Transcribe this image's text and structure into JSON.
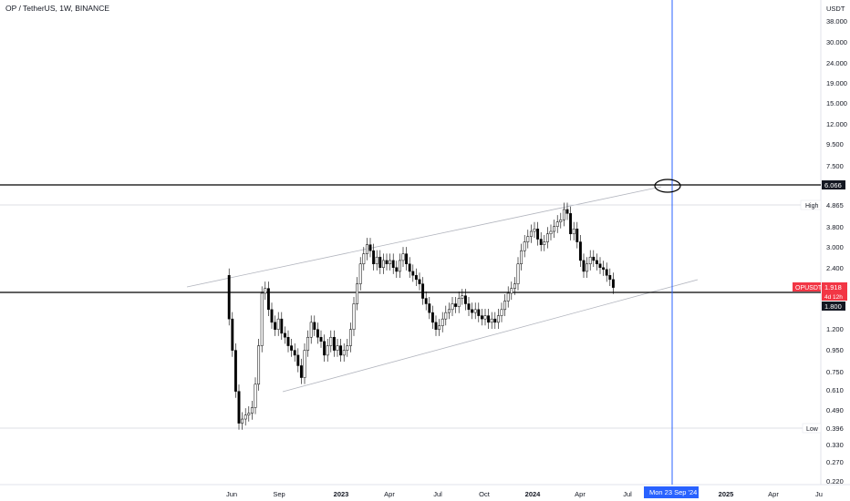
{
  "header": {
    "title": "OP / TetherUS, 1W, BINANCE"
  },
  "axis": {
    "currency": "USDT",
    "price_ticks": [
      "38.000",
      "30.000",
      "24.000",
      "19.000",
      "15.000",
      "12.000",
      "9.500",
      "7.500",
      "3.800",
      "3.000",
      "2.400",
      "1.200",
      "0.950",
      "0.750",
      "0.610",
      "0.490",
      "0.330",
      "0.270",
      "0.220"
    ],
    "time_ticks": [
      "Jun",
      "Sep",
      "2023",
      "Apr",
      "Jul",
      "Oct",
      "2024",
      "Apr",
      "Jul",
      "2025",
      "Apr",
      "Ju"
    ]
  },
  "labels": {
    "level_line": "6.066",
    "high_tag": "High",
    "high_value": "4.865",
    "symbol_tag": "OPUSDT",
    "last_price": "1.918",
    "countdown": "4d 12h",
    "support_value": "1.800",
    "low_tag": "Low",
    "low_value": "0.396",
    "cursor_date": "Mon 23 Sep '24"
  },
  "colors": {
    "axis_text": "#131722",
    "price_tag": "#f23645",
    "cursor": "#2962ff",
    "channel": "#b2b5be"
  },
  "chart_data": {
    "type": "candlestick",
    "title": "OP / TetherUS, 1W, BINANCE",
    "yscale": "log",
    "ylim": [
      0.2,
      45
    ],
    "series_close": [
      1.35,
      0.95,
      0.6,
      0.42,
      0.44,
      0.46,
      0.47,
      0.5,
      0.65,
      1.0,
      1.8,
      1.9,
      1.5,
      1.3,
      1.2,
      1.35,
      1.15,
      1.1,
      1.0,
      0.95,
      0.9,
      0.8,
      0.7,
      0.95,
      1.1,
      1.3,
      1.2,
      1.1,
      1.05,
      0.9,
      1.0,
      1.1,
      0.95,
      1.0,
      0.9,
      0.95,
      1.0,
      1.2,
      1.6,
      2.0,
      2.5,
      2.8,
      3.1,
      2.9,
      2.5,
      2.7,
      2.4,
      2.6,
      2.5,
      2.6,
      2.4,
      2.3,
      2.6,
      2.8,
      2.5,
      2.3,
      2.2,
      2.1,
      2.0,
      1.7,
      1.6,
      1.45,
      1.3,
      1.2,
      1.25,
      1.35,
      1.45,
      1.5,
      1.6,
      1.55,
      1.7,
      1.75,
      1.6,
      1.5,
      1.45,
      1.5,
      1.4,
      1.35,
      1.4,
      1.3,
      1.35,
      1.3,
      1.4,
      1.5,
      1.65,
      1.8,
      1.9,
      2.0,
      2.5,
      2.9,
      3.2,
      3.4,
      3.6,
      3.7,
      3.3,
      3.1,
      3.2,
      3.5,
      3.6,
      3.8,
      4.0,
      4.1,
      4.6,
      4.4,
      3.5,
      3.7,
      3.2,
      2.6,
      2.3,
      2.5,
      2.7,
      2.6,
      2.5,
      2.4,
      2.35,
      2.2,
      2.1,
      1.92
    ],
    "support_level": 1.8,
    "resistance_level": 6.066,
    "all_time_high": 4.865,
    "all_time_low": 0.396,
    "last_price": 1.918
  }
}
